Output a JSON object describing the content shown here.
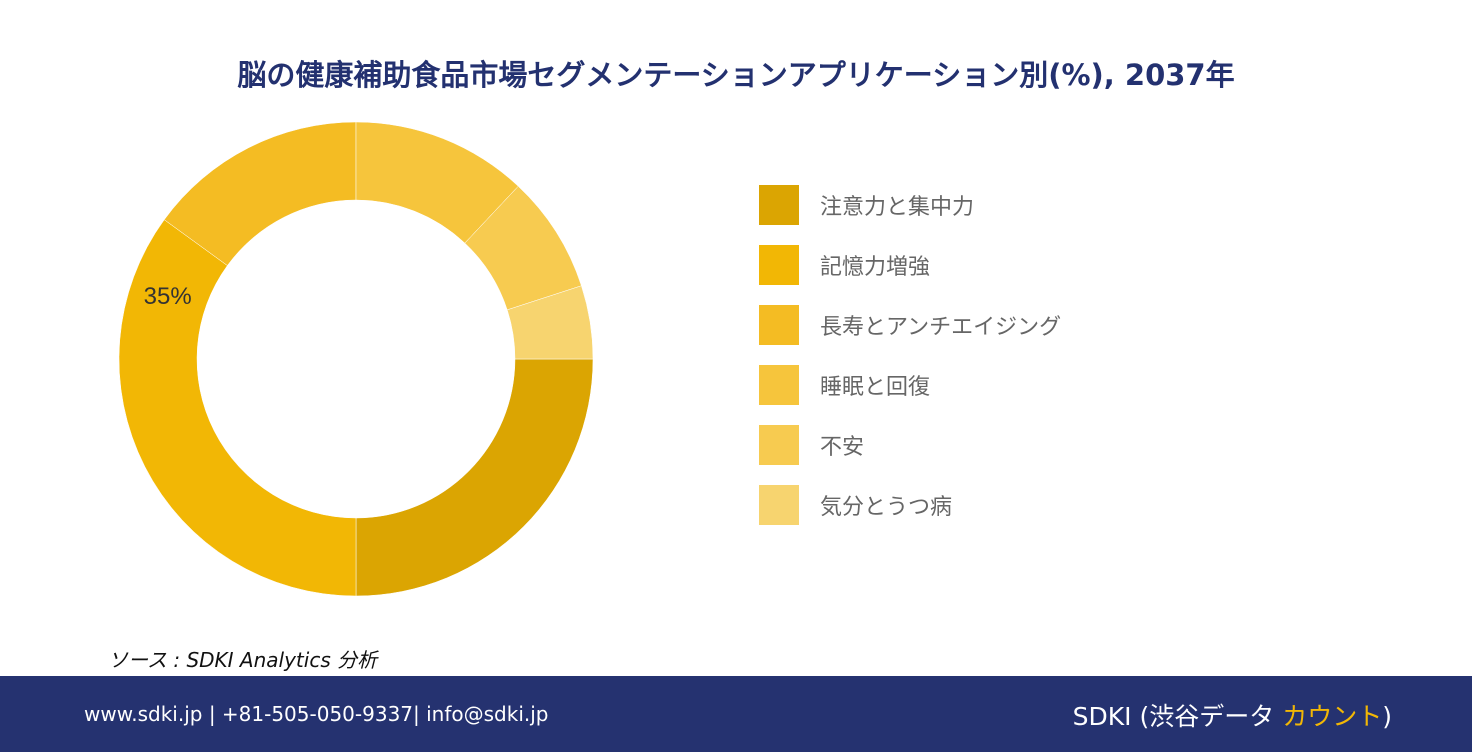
{
  "chart_data": {
    "type": "pie",
    "title": "脳の健康補助食品市場セグメンテーションアプリケーション別(%), 2037年",
    "series": [
      {
        "slices": [
          {
            "label": "注意力と集中力",
            "value": 25,
            "color": "#dba502"
          },
          {
            "label": "記憶力増強",
            "value": 35,
            "color": "#f2b705"
          },
          {
            "label": "長寿とアンチエイジング",
            "value": 15,
            "color": "#f4bc23"
          },
          {
            "label": "睡眠と回復",
            "value": 12,
            "color": "#f6c53c"
          },
          {
            "label": "不安",
            "value": 8,
            "color": "#f7cb50"
          },
          {
            "label": "気分とうつ病",
            "value": 5,
            "color": "#f7d46f"
          }
        ]
      }
    ],
    "data_labels": [
      {
        "slice": "記憶力増強",
        "text": "35%"
      }
    ],
    "legend_position": "right"
  },
  "source": {
    "text": "ソース : SDKI Analytics 分析"
  },
  "footer": {
    "contact": "www.sdki.jp | +81-505-050-9337| info@sdki.jp",
    "brand_prefix": "SDKI (渋谷データ ",
    "brand_accent": "カウント",
    "brand_suffix": ")"
  }
}
